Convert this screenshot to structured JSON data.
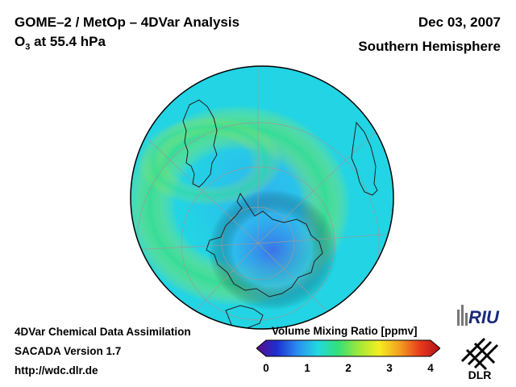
{
  "header": {
    "title": "GOME–2 / MetOp – 4DVar Analysis",
    "subtitle_prefix": "O",
    "subtitle_sub": "3",
    "subtitle_rest": " at 55.4 hPa",
    "date": "Dec 03, 2007",
    "hemisphere": "Southern Hemisphere"
  },
  "footer": {
    "line1": "4DVar Chemical Data Assimilation",
    "line2": "SACADA Version 1.7",
    "line3": "http://wdc.dlr.de"
  },
  "colorbar": {
    "title": "Volume Mixing Ratio [ppmv]",
    "ticks": [
      "0",
      "1",
      "2",
      "3",
      "4"
    ],
    "min": 0,
    "max": 4,
    "stops": [
      "#5b0a8a",
      "#1e2fd0",
      "#2a8cf0",
      "#22d8e0",
      "#33e07a",
      "#9ee83a",
      "#f4ee22",
      "#f2a020",
      "#e83c1c",
      "#b0101a"
    ]
  },
  "map": {
    "pole_value": 1.0,
    "mid_value": 1.8,
    "outer_value": 1.55,
    "ring_value": 2.3,
    "colors": {
      "deep": "#3b6fe8",
      "low": "#30b4f0",
      "cyan": "#22d4e4",
      "green": "#38de8c",
      "yellow": "#d4ec2e"
    }
  },
  "logos": {
    "riu": "RIU",
    "dlr": "DLR"
  }
}
